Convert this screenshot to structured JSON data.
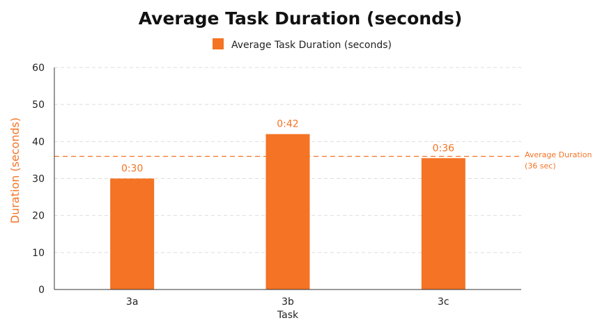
{
  "chart_data": {
    "type": "bar",
    "title": "Average Task Duration (seconds)",
    "xlabel": "Task",
    "ylabel": "Duration (seconds)",
    "categories": [
      "3a",
      "3b",
      "3c"
    ],
    "series": [
      {
        "name": "Average Task Duration (seconds)",
        "values": [
          30,
          42,
          35.5
        ],
        "data_labels": [
          "0:30",
          "0:42",
          "0:36"
        ],
        "color": "#f47324"
      }
    ],
    "ylim": [
      0,
      60
    ],
    "yticks": [
      0,
      10,
      20,
      30,
      40,
      50,
      60
    ],
    "grid": true,
    "grid_style": "dashed",
    "legend": "top-center",
    "reference_line": {
      "value": 36,
      "label_line1": "Average Duration",
      "label_line2": "(36 sec)",
      "color": "#f47324",
      "style": "dashed"
    },
    "colors": {
      "bar": "#f47324",
      "axis_title_y": "#f47324",
      "grid": "#dddddd",
      "axis": "#333333"
    }
  }
}
